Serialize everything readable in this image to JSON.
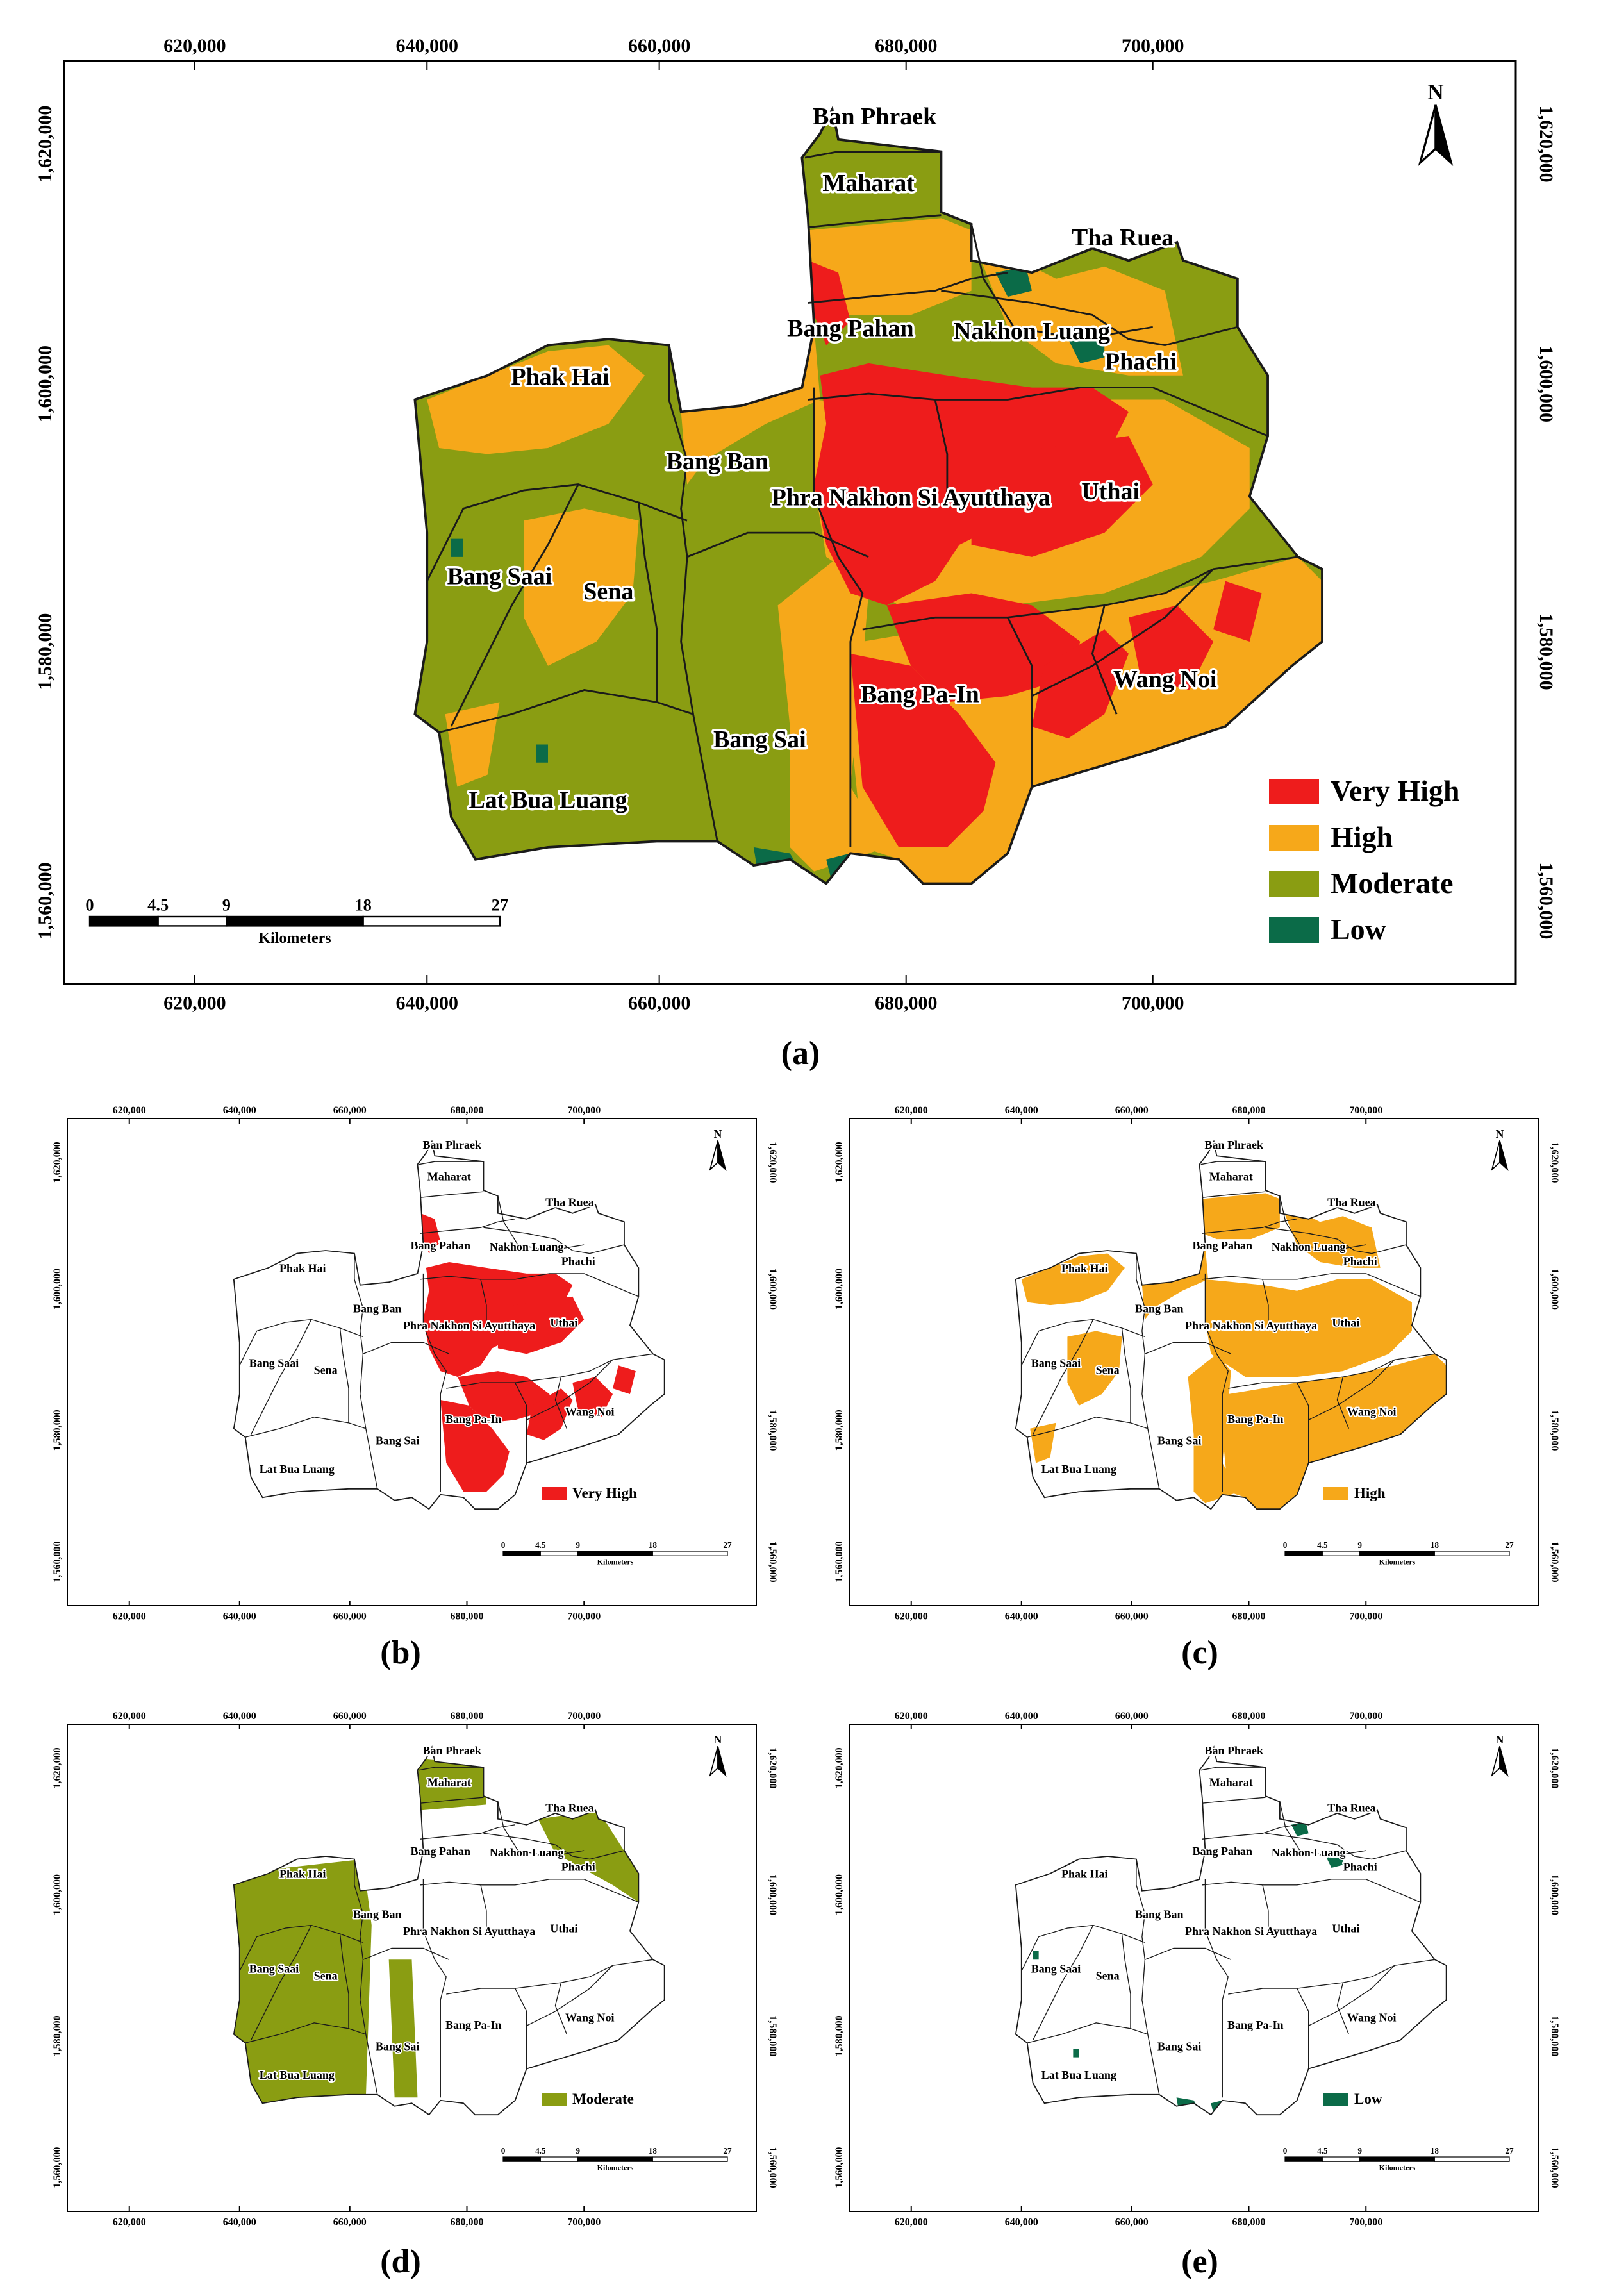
{
  "colors": {
    "very_high": "#ee1c1c",
    "high": "#f6a81a",
    "moderate": "#8a9d12",
    "low": "#0b6b48",
    "boundary": "#1a1a1a"
  },
  "north_label": "N",
  "scale_bar": {
    "ticks": [
      "0",
      "4.5",
      "9",
      "18",
      "27"
    ],
    "unit": "Kilometers"
  },
  "x_ticks": [
    "620,000",
    "640,000",
    "660,000",
    "680,000",
    "700,000"
  ],
  "y_ticks": [
    "1,620,000",
    "1,600,000",
    "1,580,000",
    "1,560,000"
  ],
  "districts": [
    "Ban Phraek",
    "Maharat",
    "Tha Ruea",
    "Bang Pahan",
    "Nakhon Luang",
    "Phachi",
    "Phak Hai",
    "Bang Ban",
    "Phra Nakhon Si Ayutthaya",
    "Uthai",
    "Bang Saai",
    "Sena",
    "Wang Noi",
    "Bang Pa-In",
    "Bang Sai",
    "Lat Bua Luang"
  ],
  "panels": [
    {
      "caption": "(a)",
      "legend": [
        "Very High",
        "High",
        "Moderate",
        "Low"
      ]
    },
    {
      "caption": "(b)",
      "legend": [
        "Very High"
      ]
    },
    {
      "caption": "(c)",
      "legend": [
        "High"
      ]
    },
    {
      "caption": "(d)",
      "legend": [
        "Moderate"
      ]
    },
    {
      "caption": "(e)",
      "legend": [
        "Low"
      ]
    }
  ]
}
